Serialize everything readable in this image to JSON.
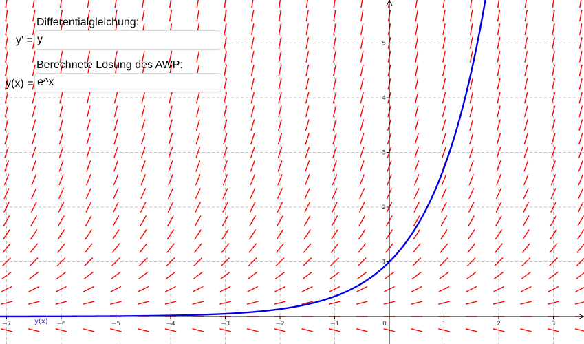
{
  "panel": {
    "ode_heading": "Differentialgleichung:",
    "ode_prefix": "y' =",
    "ode_value": "y",
    "solution_heading": "Berechnete Lösung des AWP:",
    "solution_prefix": "y(x) =",
    "solution_value": "e^x"
  },
  "graph": {
    "curve_label": "y(x)",
    "x_tick_labels": [
      "−7",
      "−6",
      "−5",
      "−4",
      "−3",
      "−2",
      "−1",
      "0",
      "1",
      "2",
      "3"
    ],
    "y_tick_labels": [
      "1",
      "2",
      "3",
      "4",
      "5"
    ],
    "colors": {
      "slope_field": "#ff0000",
      "solution_curve": "#0000e6",
      "grid": "#c0c0c0",
      "axes": "#000000"
    }
  },
  "chart_data": {
    "type": "line",
    "title": "",
    "xlabel": "",
    "ylabel": "",
    "xlim": [
      -7.2,
      3.5
    ],
    "ylim": [
      -0.45,
      5.85
    ],
    "grid": true,
    "series": [
      {
        "name": "y(x)",
        "function": "e^x"
      }
    ],
    "slope_field": {
      "equation": "y' = y"
    }
  }
}
